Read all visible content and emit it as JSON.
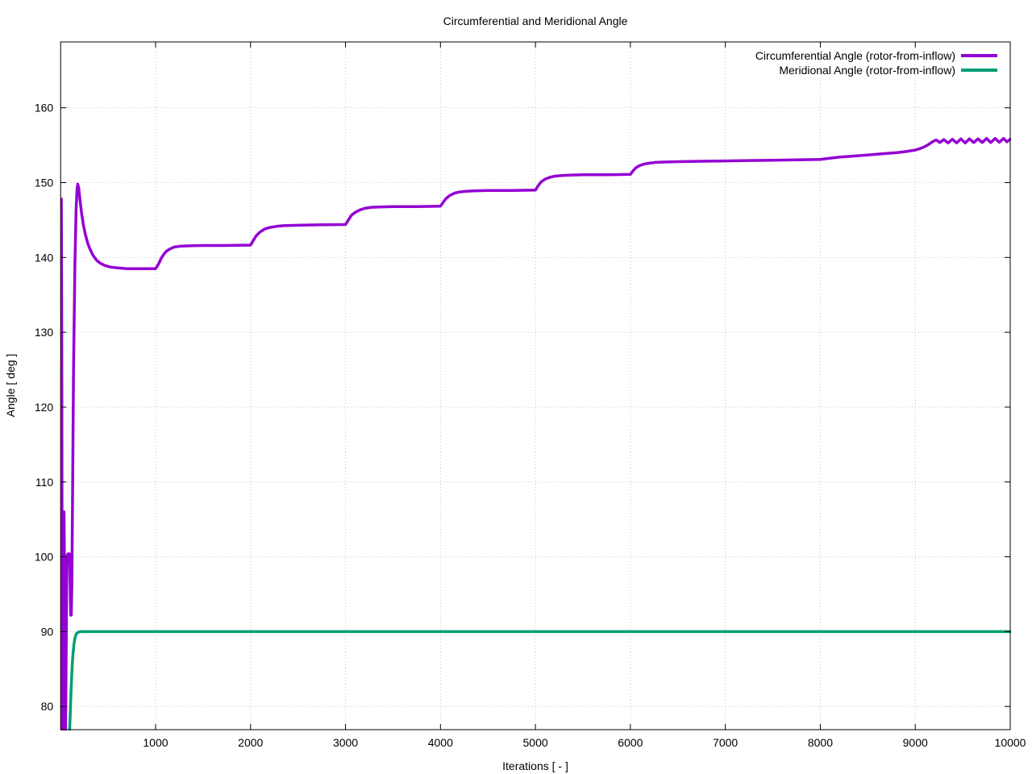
{
  "window": {
    "background": "#ffffff"
  },
  "chart_data": {
    "type": "line",
    "title": "Circumferential and Meridional Angle",
    "xlabel": "Iterations [ - ]",
    "ylabel": "Angle [ deg ]",
    "xlim": [
      0,
      10000
    ],
    "ylim": [
      76.9,
      168.8
    ],
    "x_ticks": [
      1000,
      2000,
      3000,
      4000,
      5000,
      6000,
      7000,
      8000,
      9000,
      10000
    ],
    "y_ticks": [
      80,
      90,
      100,
      110,
      120,
      130,
      140,
      150,
      160
    ],
    "grid": true,
    "grid_style": "dotted",
    "grid_color": "#c4c4c4",
    "legend_position": "top-right-inside",
    "series": [
      {
        "name": "Circumferential Angle (rotor-from-inflow)",
        "color": "#9400d3",
        "points": [
          [
            0,
            147.8
          ],
          [
            8,
            147.8
          ],
          [
            12,
            130
          ],
          [
            18,
            76
          ],
          [
            26,
            76
          ],
          [
            30,
            90
          ],
          [
            36,
            106
          ],
          [
            40,
            100
          ],
          [
            46,
            77
          ],
          [
            52,
            76
          ],
          [
            58,
            86
          ],
          [
            64,
            96
          ],
          [
            70,
            100.2
          ],
          [
            80,
            100.4
          ],
          [
            92,
            100.4
          ],
          [
            98,
            100
          ],
          [
            102,
            95
          ],
          [
            106,
            92.2
          ],
          [
            112,
            92.2
          ],
          [
            118,
            96
          ],
          [
            126,
            108
          ],
          [
            136,
            125
          ],
          [
            150,
            139
          ],
          [
            163,
            146.5
          ],
          [
            172,
            149
          ],
          [
            180,
            149.8
          ],
          [
            190,
            149.3
          ],
          [
            205,
            147.6
          ],
          [
            220,
            146
          ],
          [
            240,
            144.3
          ],
          [
            260,
            143.1
          ],
          [
            285,
            141.9
          ],
          [
            310,
            141.1
          ],
          [
            340,
            140.3
          ],
          [
            380,
            139.6
          ],
          [
            420,
            139.2
          ],
          [
            470,
            138.9
          ],
          [
            530,
            138.7
          ],
          [
            600,
            138.6
          ],
          [
            700,
            138.5
          ],
          [
            850,
            138.5
          ],
          [
            1000,
            138.5
          ],
          [
            1030,
            139.1
          ],
          [
            1060,
            139.9
          ],
          [
            1090,
            140.5
          ],
          [
            1120,
            140.9
          ],
          [
            1160,
            141.2
          ],
          [
            1200,
            141.4
          ],
          [
            1260,
            141.5
          ],
          [
            1350,
            141.55
          ],
          [
            1500,
            141.6
          ],
          [
            1700,
            141.6
          ],
          [
            2000,
            141.65
          ],
          [
            2030,
            142.3
          ],
          [
            2060,
            142.9
          ],
          [
            2100,
            143.4
          ],
          [
            2150,
            143.8
          ],
          [
            2200,
            144.0
          ],
          [
            2270,
            144.15
          ],
          [
            2350,
            144.25
          ],
          [
            2500,
            144.3
          ],
          [
            2700,
            144.35
          ],
          [
            3000,
            144.4
          ],
          [
            3030,
            145.0
          ],
          [
            3060,
            145.6
          ],
          [
            3100,
            146.0
          ],
          [
            3150,
            146.35
          ],
          [
            3200,
            146.55
          ],
          [
            3270,
            146.7
          ],
          [
            3350,
            146.75
          ],
          [
            3500,
            146.8
          ],
          [
            3750,
            146.8
          ],
          [
            4000,
            146.85
          ],
          [
            4030,
            147.4
          ],
          [
            4060,
            147.9
          ],
          [
            4100,
            148.3
          ],
          [
            4150,
            148.6
          ],
          [
            4200,
            148.75
          ],
          [
            4270,
            148.85
          ],
          [
            4350,
            148.9
          ],
          [
            4500,
            148.95
          ],
          [
            4750,
            148.95
          ],
          [
            5000,
            149.0
          ],
          [
            5030,
            149.6
          ],
          [
            5060,
            150.1
          ],
          [
            5100,
            150.45
          ],
          [
            5150,
            150.7
          ],
          [
            5200,
            150.85
          ],
          [
            5270,
            150.95
          ],
          [
            5350,
            151.0
          ],
          [
            5500,
            151.05
          ],
          [
            5750,
            151.05
          ],
          [
            6000,
            151.1
          ],
          [
            6030,
            151.6
          ],
          [
            6060,
            152.0
          ],
          [
            6100,
            152.3
          ],
          [
            6150,
            152.5
          ],
          [
            6200,
            152.6
          ],
          [
            6270,
            152.7
          ],
          [
            6350,
            152.75
          ],
          [
            6500,
            152.8
          ],
          [
            6750,
            152.85
          ],
          [
            7000,
            152.9
          ],
          [
            7250,
            152.95
          ],
          [
            7500,
            153.0
          ],
          [
            7750,
            153.05
          ],
          [
            8000,
            153.1
          ],
          [
            8100,
            153.25
          ],
          [
            8200,
            153.4
          ],
          [
            8300,
            153.5
          ],
          [
            8400,
            153.6
          ],
          [
            8500,
            153.7
          ],
          [
            8600,
            153.8
          ],
          [
            8700,
            153.9
          ],
          [
            8800,
            154.0
          ],
          [
            8900,
            154.15
          ],
          [
            9000,
            154.35
          ],
          [
            9050,
            154.55
          ],
          [
            9100,
            154.8
          ],
          [
            9140,
            155.1
          ],
          [
            9180,
            155.45
          ],
          [
            9220,
            155.7
          ],
          [
            9260,
            155.35
          ],
          [
            9300,
            155.75
          ],
          [
            9345,
            155.3
          ],
          [
            9390,
            155.8
          ],
          [
            9435,
            155.3
          ],
          [
            9480,
            155.85
          ],
          [
            9525,
            155.3
          ],
          [
            9570,
            155.85
          ],
          [
            9615,
            155.35
          ],
          [
            9660,
            155.85
          ],
          [
            9705,
            155.35
          ],
          [
            9750,
            155.9
          ],
          [
            9795,
            155.35
          ],
          [
            9840,
            155.9
          ],
          [
            9885,
            155.4
          ],
          [
            9930,
            155.9
          ],
          [
            9965,
            155.45
          ],
          [
            10000,
            155.8
          ]
        ]
      },
      {
        "name": "Meridional Angle (rotor-from-inflow)",
        "color": "#009e73",
        "points": [
          [
            92,
            76
          ],
          [
            100,
            78.5
          ],
          [
            105,
            80.5
          ],
          [
            110,
            82.3
          ],
          [
            116,
            84
          ],
          [
            122,
            85.5
          ],
          [
            130,
            87
          ],
          [
            140,
            88.3
          ],
          [
            150,
            89.1
          ],
          [
            162,
            89.6
          ],
          [
            175,
            89.85
          ],
          [
            190,
            89.95
          ],
          [
            210,
            90
          ],
          [
            1000,
            90
          ],
          [
            3000,
            90
          ],
          [
            5000,
            90
          ],
          [
            7000,
            90
          ],
          [
            9000,
            90
          ],
          [
            10000,
            90
          ]
        ]
      }
    ]
  }
}
